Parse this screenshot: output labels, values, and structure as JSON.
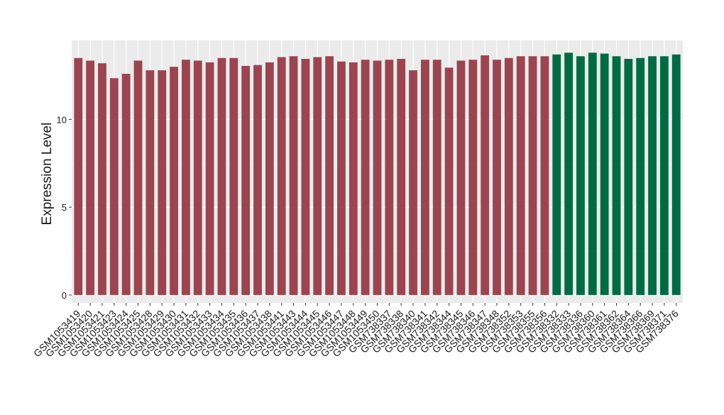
{
  "chart_data": {
    "type": "bar",
    "y_label": "Expression Level",
    "categories": [
      "GSM1053419",
      "GSM1053420",
      "GSM1053421",
      "GSM1053423",
      "GSM1053424",
      "GSM1053425",
      "GSM1053428",
      "GSM1053429",
      "GSM1053430",
      "GSM1053431",
      "GSM1053432",
      "GSM1053433",
      "GSM1053434",
      "GSM1053435",
      "GSM1053436",
      "GSM1053437",
      "GSM1053438",
      "GSM1053441",
      "GSM1053443",
      "GSM1053444",
      "GSM1053445",
      "GSM1053446",
      "GSM1053447",
      "GSM1053448",
      "GSM1053449",
      "GSM1053450",
      "GSM738337",
      "GSM738338",
      "GSM738340",
      "GSM738341",
      "GSM738342",
      "GSM738344",
      "GSM738345",
      "GSM738346",
      "GSM738347",
      "GSM738348",
      "GSM738352",
      "GSM738353",
      "GSM738355",
      "GSM738356",
      "GSM738332",
      "GSM738333",
      "GSM738336",
      "GSM738360",
      "GSM738361",
      "GSM738362",
      "GSM738364",
      "GSM738366",
      "GSM738369",
      "GSM738371",
      "GSM738376"
    ],
    "values": [
      13.5,
      13.35,
      13.2,
      12.35,
      12.6,
      13.35,
      12.8,
      12.8,
      13.0,
      13.4,
      13.35,
      13.25,
      13.5,
      13.5,
      13.05,
      13.1,
      13.25,
      13.55,
      13.6,
      13.45,
      13.55,
      13.6,
      13.3,
      13.25,
      13.4,
      13.35,
      13.4,
      13.45,
      12.8,
      13.4,
      13.4,
      12.95,
      13.35,
      13.4,
      13.65,
      13.4,
      13.5,
      13.6,
      13.6,
      13.6,
      13.7,
      13.8,
      13.6,
      13.8,
      13.75,
      13.6,
      13.45,
      13.5,
      13.6,
      13.6,
      13.7
    ],
    "colors": [
      "#9b4550",
      "#9b4550",
      "#9b4550",
      "#9b4550",
      "#9b4550",
      "#9b4550",
      "#9b4550",
      "#9b4550",
      "#9b4550",
      "#9b4550",
      "#9b4550",
      "#9b4550",
      "#9b4550",
      "#9b4550",
      "#9b4550",
      "#9b4550",
      "#9b4550",
      "#9b4550",
      "#9b4550",
      "#9b4550",
      "#9b4550",
      "#9b4550",
      "#9b4550",
      "#9b4550",
      "#9b4550",
      "#9b4550",
      "#9b4550",
      "#9b4550",
      "#9b4550",
      "#9b4550",
      "#9b4550",
      "#9b4550",
      "#9b4550",
      "#9b4550",
      "#9b4550",
      "#9b4550",
      "#9b4550",
      "#9b4550",
      "#9b4550",
      "#9b4550",
      "#006a45",
      "#006a45",
      "#006a45",
      "#006a45",
      "#006a45",
      "#006a45",
      "#006a45",
      "#006a45",
      "#006a45",
      "#006a45",
      "#006a45"
    ],
    "ylim": [
      -0.45,
      14.5
    ],
    "yticks": [
      0,
      5,
      10
    ],
    "grid": true
  }
}
